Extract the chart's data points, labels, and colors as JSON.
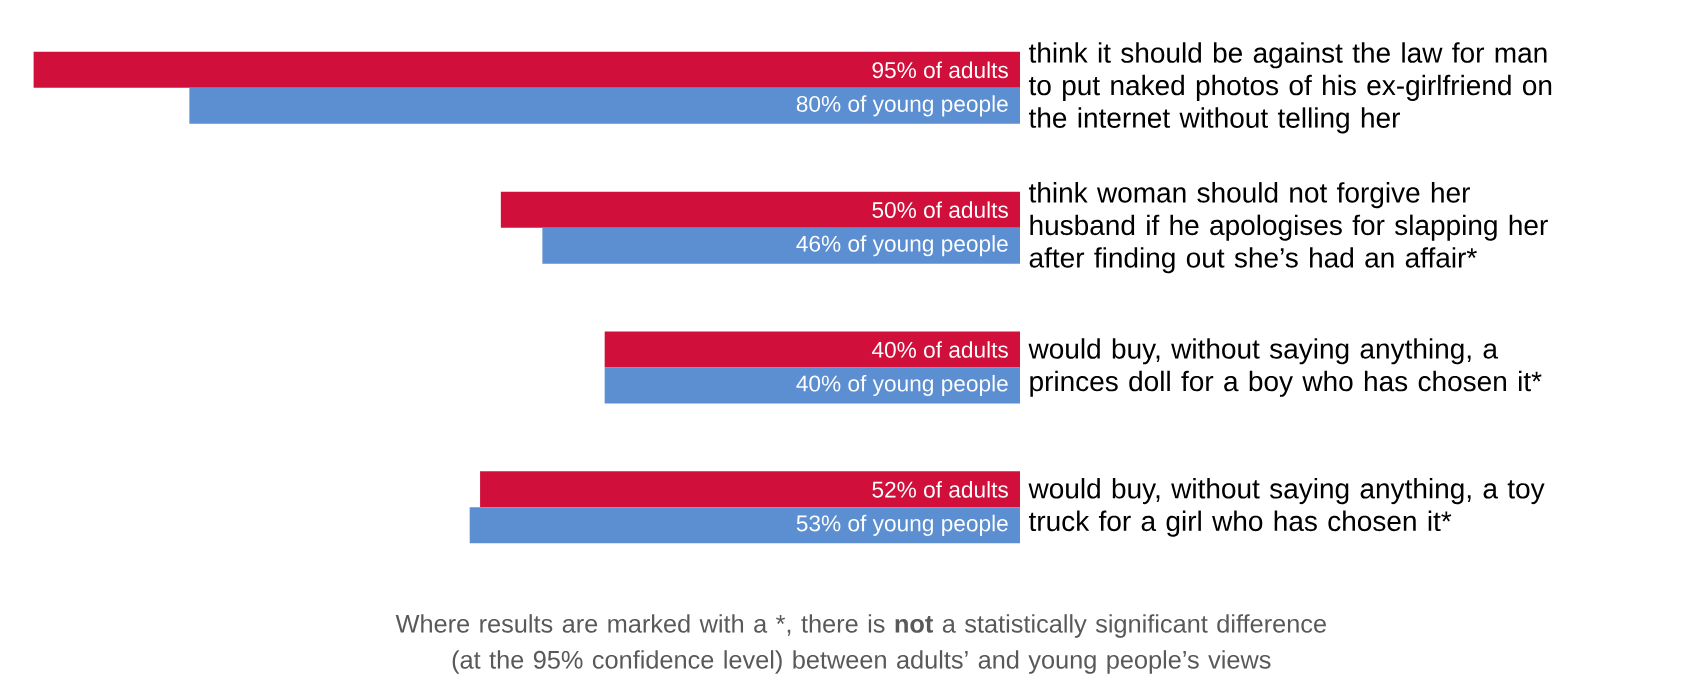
{
  "chart_data": {
    "type": "bar",
    "orientation": "horizontal",
    "categories": [
      "think it should be against the law for man to put naked photos of his ex-girlfriend on the internet without telling her",
      "think woman should not forgive her husband if he apologises for slapping her after finding out she’s had an affair*",
      "would buy, without saying anything, a princes doll for a boy who has chosen it*",
      "would buy, without saying anything, a toy truck for a girl who has chosen it*"
    ],
    "series": [
      {
        "color": "#d0103a",
        "values": [
          95,
          50,
          40,
          52
        ],
        "value_labels": [
          "95% of adults",
          "50% of adults",
          "40% of adults",
          "52% of adults"
        ]
      },
      {
        "color": "#5b8fd1",
        "values": [
          80,
          46,
          40,
          53
        ],
        "value_labels": [
          "80% of young people",
          "46% of young people",
          "40% of young people",
          "53% of young people"
        ]
      }
    ],
    "annotations": [
      "Where results are marked with a *, there is **not** a statistically significant difference (at the 95% confidence level) between adults’ and young people’s views"
    ]
  }
}
